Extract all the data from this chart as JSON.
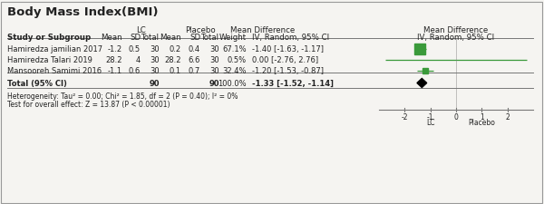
{
  "title": "Body Mass Index(BMI)",
  "studies": [
    {
      "name": "Hamiredza jamilian 2017",
      "lc_mean": "-1.2",
      "lc_sd": "0.5",
      "lc_total": "30",
      "pl_mean": "0.2",
      "pl_sd": "0.4",
      "pl_total": "30",
      "weight": "67.1%",
      "ci_str": "-1.40 [-1.63, -1.17]",
      "md": -1.4,
      "ci_low": -1.63,
      "ci_high": -1.17,
      "marker": "square_large"
    },
    {
      "name": "Hamiredza Talari 2019",
      "lc_mean": "28.2",
      "lc_sd": "4",
      "lc_total": "30",
      "pl_mean": "28.2",
      "pl_sd": "6.6",
      "pl_total": "30",
      "weight": "0.5%",
      "ci_str": "0.00 [-2.76, 2.76]",
      "md": 0.0,
      "ci_low": -2.76,
      "ci_high": 2.76,
      "marker": "line_only"
    },
    {
      "name": "Mansooreh Samimi 2016",
      "lc_mean": "-1.1",
      "lc_sd": "0.6",
      "lc_total": "30",
      "pl_mean": "0.1",
      "pl_sd": "0.7",
      "pl_total": "30",
      "weight": "32.4%",
      "ci_str": "-1.20 [-1.53, -0.87]",
      "md": -1.2,
      "ci_low": -1.53,
      "ci_high": -0.87,
      "marker": "square_small"
    }
  ],
  "total_n_lc": "90",
  "total_n_pl": "90",
  "total_weight": "100.0%",
  "total_md": -1.33,
  "total_ci_low": -1.52,
  "total_ci_high": -1.14,
  "total_ci_str": "-1.33 [-1.52, -1.14]",
  "heterogeneity_text": "Heterogeneity: Tau² = 0.00; Chi² = 1.85, df = 2 (P = 0.40); I² = 0%",
  "overall_effect_text": "Test for overall effect: Z = 13.87 (P < 0.00001)",
  "forest_xlim": [
    -3.0,
    3.0
  ],
  "forest_xticks": [
    -2,
    -1,
    0,
    1,
    2
  ],
  "study_color": "#3a9a3a",
  "total_color": "#000000",
  "bg_color": "#f5f4f1",
  "text_color": "#222222",
  "line_color": "#777777"
}
